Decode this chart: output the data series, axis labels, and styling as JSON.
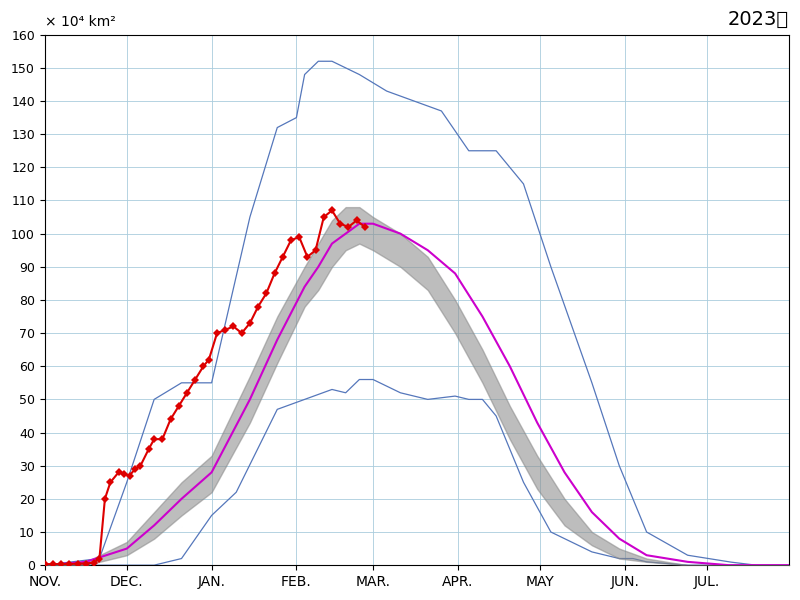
{
  "title": "2023年",
  "ylim": [
    0,
    160
  ],
  "yticks": [
    0,
    10,
    20,
    30,
    40,
    50,
    60,
    70,
    80,
    90,
    100,
    110,
    120,
    130,
    140,
    150,
    160
  ],
  "months": [
    "NOV.",
    "DEC.",
    "JAN.",
    "FEB.",
    "MAR.",
    "APR.",
    "MAY",
    "JUN.",
    "JUL."
  ],
  "month_lengths": [
    30,
    31,
    31,
    28,
    31,
    30,
    31,
    30,
    31
  ],
  "background_color": "#ffffff",
  "grid_color": "#aaccdd",
  "mean_color": "#cc00cc",
  "shade_color": "#888888",
  "max_min_color": "#5577bb",
  "obs_color": "#dd0000",
  "obs_marker": "D",
  "ylabel_text": "× 10⁴ km²"
}
